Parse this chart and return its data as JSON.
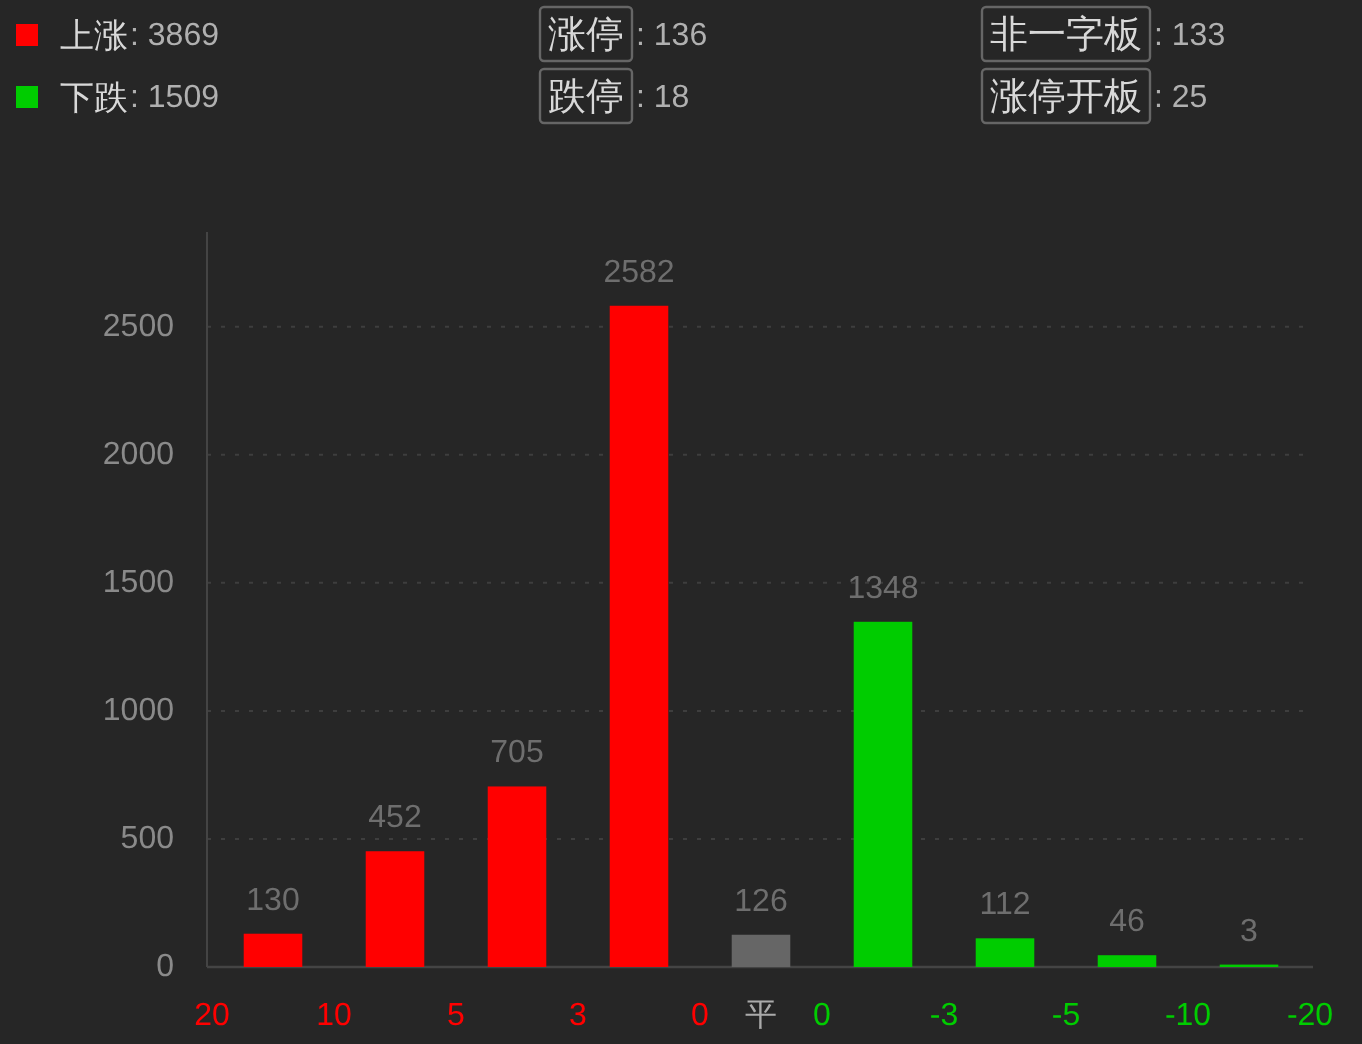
{
  "chart_data": {
    "type": "bar",
    "categories": [
      "20",
      null,
      "10",
      null,
      "5",
      null,
      "3",
      null,
      "0",
      "平",
      "0",
      null,
      "-3",
      null,
      "-5",
      null,
      "-10",
      null,
      "-20"
    ],
    "ylim": [
      0,
      2870
    ],
    "yticks": [
      0,
      500,
      1000,
      1500,
      2000,
      2500
    ],
    "grid": "y",
    "data_labels": true,
    "legend": "top left",
    "series": [
      {
        "name": "上涨",
        "color": "#ff0000",
        "values": [
          null,
          130,
          null,
          452,
          null,
          705,
          null,
          2582,
          null,
          null,
          null,
          null,
          null,
          null,
          null,
          null,
          null,
          null,
          null
        ]
      },
      {
        "color": "#666666",
        "values": [
          null,
          null,
          null,
          null,
          null,
          null,
          null,
          null,
          null,
          126,
          null,
          null,
          null,
          null,
          null,
          null,
          null,
          null,
          null
        ]
      },
      {
        "name": "下跌",
        "color": "#00cc00",
        "values": [
          null,
          null,
          null,
          null,
          null,
          null,
          null,
          null,
          null,
          null,
          null,
          1348,
          null,
          112,
          null,
          46,
          null,
          3,
          null
        ]
      }
    ],
    "annotations": [
      ": 3869",
      ": 1509",
      "涨停",
      ": 136",
      "跌停",
      ": 18",
      "非一字板",
      ": 133",
      "涨停开板",
      ": 25"
    ]
  }
}
